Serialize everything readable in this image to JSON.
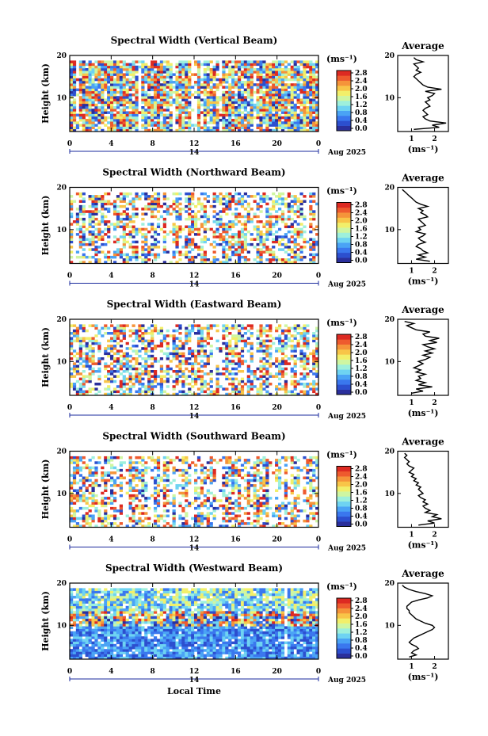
{
  "figure": {
    "xlabel": "Local Time",
    "date_month_label": "Aug 2025",
    "date_day_label": "14",
    "unit_label": "(ms⁻¹)",
    "avg_title": "Average",
    "avg_xlabel": "(ms⁻¹)"
  },
  "colorbar": {
    "ticks": [
      "2.8",
      "2.4",
      "2.0",
      "1.6",
      "1.2",
      "0.8",
      "0.4",
      "0.0"
    ],
    "colors": [
      "#2a2f9c",
      "#2c4fcf",
      "#3a77ee",
      "#4aa3f5",
      "#6ed3f2",
      "#9ef0dc",
      "#cff6a2",
      "#f2ef6a",
      "#f8c548",
      "#f5943a",
      "#ee5a2e",
      "#dd2a22"
    ]
  },
  "chart_data": [
    {
      "type": "heatmap",
      "title": "Spectral Width (Vertical Beam)",
      "xlabel": "Local Time",
      "ylabel": "Height (km)",
      "x_ticks": [
        "0",
        "4",
        "8",
        "12",
        "16",
        "20",
        "0"
      ],
      "y_ticks": [
        "20",
        "10"
      ],
      "xlim": [
        0,
        24
      ],
      "ylim": [
        2,
        20
      ],
      "colorbar_range": [
        0.0,
        2.8
      ],
      "avg_profile": {
        "xlabel": "(ms⁻¹)",
        "x_ticks": [
          "1",
          "2"
        ],
        "xlim": [
          0.4,
          2.6
        ],
        "height_km": [
          2.5,
          3,
          3.5,
          4,
          4.5,
          5,
          5.5,
          6,
          6.5,
          7,
          7.5,
          8,
          8.5,
          9,
          9.5,
          10,
          10.5,
          11,
          11.5,
          12,
          12.5,
          13,
          13.5,
          14,
          14.5,
          15,
          15.5,
          16,
          16.5,
          17,
          17.5,
          18,
          18.5,
          19,
          19.5
        ],
        "width_ms": [
          1.1,
          2.2,
          1.9,
          2.5,
          1.8,
          1.6,
          1.5,
          1.7,
          1.6,
          1.5,
          1.6,
          1.8,
          1.7,
          1.6,
          1.8,
          1.7,
          1.9,
          2.0,
          1.6,
          2.3,
          1.7,
          1.5,
          1.4,
          1.3,
          1.2,
          1.1,
          1.2,
          1.4,
          1.2,
          1.3,
          1.2,
          1.1,
          1.5,
          1.2,
          1.1
        ]
      }
    },
    {
      "type": "heatmap",
      "title": "Spectral Width (Northward Beam)",
      "xlabel": "Local Time",
      "ylabel": "Height (km)",
      "x_ticks": [
        "0",
        "4",
        "8",
        "12",
        "16",
        "20",
        "0"
      ],
      "y_ticks": [
        "20",
        "10"
      ],
      "xlim": [
        0,
        24
      ],
      "ylim": [
        2,
        20
      ],
      "colorbar_range": [
        0.0,
        2.8
      ],
      "avg_profile": {
        "xlabel": "(ms⁻¹)",
        "x_ticks": [
          "1",
          "2"
        ],
        "xlim": [
          0.4,
          2.6
        ],
        "height_km": [
          2.5,
          3,
          3.5,
          4,
          4.5,
          5,
          5.5,
          6,
          6.5,
          7,
          7.5,
          8,
          8.5,
          9,
          9.5,
          10,
          10.5,
          11,
          11.5,
          12,
          12.5,
          13,
          13.5,
          14,
          14.5,
          15,
          15.5,
          16,
          16.5,
          17,
          17.5,
          18,
          18.5,
          19,
          19.5
        ],
        "width_ms": [
          1.8,
          1.2,
          1.6,
          1.3,
          1.7,
          1.5,
          1.4,
          1.2,
          1.3,
          1.6,
          1.4,
          1.3,
          1.5,
          1.6,
          1.2,
          1.4,
          1.3,
          1.6,
          1.5,
          1.4,
          1.3,
          1.7,
          1.6,
          1.4,
          1.5,
          1.3,
          1.7,
          1.4,
          1.2,
          1.1,
          1.0,
          0.9,
          0.8,
          0.7,
          0.6
        ]
      }
    },
    {
      "type": "heatmap",
      "title": "Spectral Width (Eastward Beam)",
      "xlabel": "Local Time",
      "ylabel": "Height (km)",
      "x_ticks": [
        "0",
        "4",
        "8",
        "12",
        "16",
        "20",
        "0"
      ],
      "y_ticks": [
        "20",
        "10"
      ],
      "xlim": [
        0,
        24
      ],
      "ylim": [
        2,
        20
      ],
      "colorbar_range": [
        0.0,
        2.8
      ],
      "avg_profile": {
        "xlabel": "(ms⁻¹)",
        "x_ticks": [
          "1",
          "2"
        ],
        "xlim": [
          0.4,
          2.6
        ],
        "height_km": [
          2.5,
          3,
          3.5,
          4,
          4.5,
          5,
          5.5,
          6,
          6.5,
          7,
          7.5,
          8,
          8.5,
          9,
          9.5,
          10,
          10.5,
          11,
          11.5,
          12,
          12.5,
          13,
          13.5,
          14,
          14.5,
          15,
          15.5,
          16,
          16.5,
          17,
          17.5,
          18,
          18.5,
          19,
          19.5
        ],
        "width_ms": [
          1.0,
          1.5,
          1.2,
          1.9,
          1.3,
          1.6,
          1.2,
          1.4,
          1.3,
          1.6,
          1.2,
          1.4,
          1.1,
          1.3,
          1.5,
          1.3,
          1.6,
          1.8,
          1.5,
          1.9,
          1.6,
          2.0,
          1.7,
          1.5,
          2.1,
          1.8,
          2.2,
          1.6,
          1.5,
          1.8,
          1.2,
          1.0,
          0.8,
          1.1,
          0.7
        ]
      }
    },
    {
      "type": "heatmap",
      "title": "Spectral Width (Southward Beam)",
      "xlabel": "Local Time",
      "ylabel": "Height (km)",
      "x_ticks": [
        "0",
        "4",
        "8",
        "12",
        "16",
        "20",
        "0"
      ],
      "y_ticks": [
        "20",
        "10"
      ],
      "xlim": [
        0,
        24
      ],
      "ylim": [
        2,
        20
      ],
      "colorbar_range": [
        0.0,
        2.8
      ],
      "avg_profile": {
        "xlabel": "(ms⁻¹)",
        "x_ticks": [
          "1",
          "2"
        ],
        "xlim": [
          0.4,
          2.6
        ],
        "height_km": [
          2.5,
          3,
          3.5,
          4,
          4.5,
          5,
          5.5,
          6,
          6.5,
          7,
          7.5,
          8,
          8.5,
          9,
          9.5,
          10,
          10.5,
          11,
          11.5,
          12,
          12.5,
          13,
          13.5,
          14,
          14.5,
          15,
          15.5,
          16,
          16.5,
          17,
          17.5,
          18,
          18.5,
          19,
          19.5
        ],
        "width_ms": [
          1.3,
          2.0,
          1.7,
          2.3,
          1.9,
          2.1,
          1.6,
          1.8,
          1.6,
          1.5,
          1.7,
          1.5,
          1.6,
          1.4,
          1.3,
          1.5,
          1.4,
          1.3,
          1.4,
          1.2,
          1.3,
          1.1,
          1.2,
          1.0,
          1.1,
          0.9,
          1.0,
          1.1,
          0.9,
          0.8,
          0.9,
          0.8,
          0.7,
          0.8,
          0.7
        ]
      }
    },
    {
      "type": "heatmap",
      "title": "Spectral Width (Westward Beam)",
      "xlabel": "Local Time",
      "ylabel": "Height (km)",
      "x_ticks": [
        "0",
        "4",
        "8",
        "12",
        "16",
        "20",
        "0"
      ],
      "y_ticks": [
        "20",
        "10"
      ],
      "xlim": [
        0,
        24
      ],
      "ylim": [
        2,
        20
      ],
      "colorbar_range": [
        0.0,
        2.8
      ],
      "avg_profile": {
        "xlabel": "(ms⁻¹)",
        "x_ticks": [
          "1",
          "2"
        ],
        "xlim": [
          0.4,
          2.6
        ],
        "height_km": [
          2.5,
          3,
          3.5,
          4,
          4.5,
          5,
          5.5,
          6,
          6.5,
          7,
          7.5,
          8,
          8.5,
          9,
          9.5,
          10,
          10.5,
          11,
          11.5,
          12,
          12.5,
          13,
          13.5,
          14,
          14.5,
          15,
          15.5,
          16,
          16.5,
          17,
          17.5,
          18,
          18.5,
          19,
          19.5
        ],
        "width_ms": [
          0.9,
          1.2,
          1.0,
          1.1,
          1.3,
          1.2,
          1.0,
          0.9,
          1.0,
          1.1,
          1.3,
          1.5,
          1.7,
          1.9,
          2.0,
          1.9,
          1.6,
          1.4,
          1.2,
          1.1,
          1.0,
          0.9,
          0.9,
          0.8,
          0.8,
          0.9,
          1.0,
          1.3,
          1.7,
          1.9,
          1.6,
          1.2,
          0.9,
          0.7,
          0.6
        ]
      }
    }
  ]
}
